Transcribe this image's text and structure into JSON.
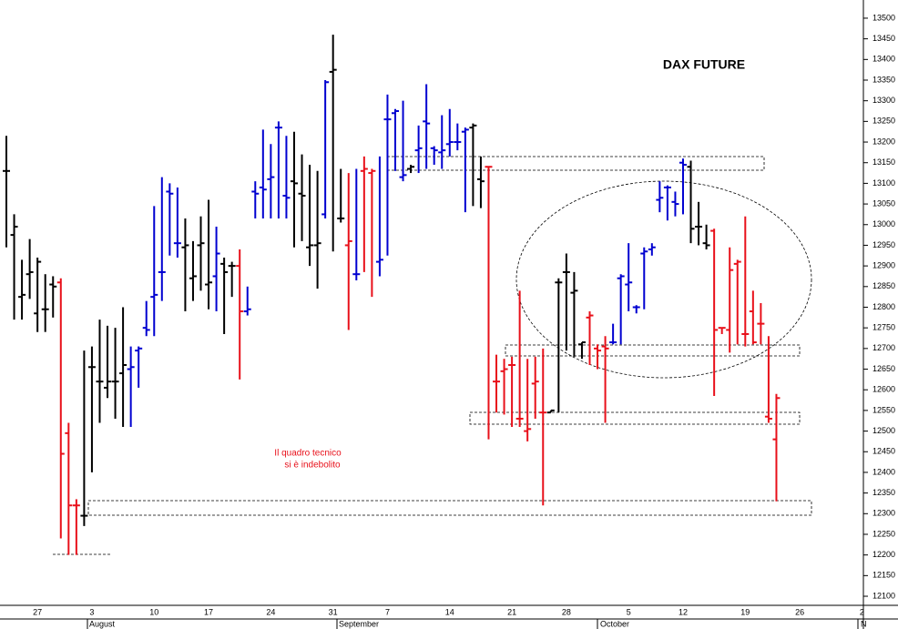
{
  "chart_data": {
    "type": "ohlc",
    "title": "DAX FUTURE",
    "annotations": [
      "Il quadro tecnico",
      "si è indebolito"
    ],
    "months": [
      "August",
      "September",
      "October",
      "N"
    ],
    "categories": [
      null,
      null,
      null,
      null,
      "27",
      null,
      null,
      null,
      null,
      null,
      null,
      "3",
      null,
      null,
      null,
      null,
      null,
      null,
      null,
      "10",
      null,
      null,
      null,
      null,
      null,
      null,
      "17",
      null,
      null,
      null,
      null,
      null,
      null,
      null,
      "24",
      null,
      null,
      null,
      null,
      null,
      null,
      null,
      "31",
      null,
      null,
      null,
      null,
      null,
      null,
      "7",
      null,
      null,
      null,
      null,
      null,
      null,
      null,
      "14",
      null,
      null,
      null,
      null,
      null,
      null,
      null,
      "21",
      null,
      null,
      null,
      null,
      null,
      null,
      "28",
      null,
      null,
      null,
      null,
      null,
      null,
      null,
      "5",
      null,
      null,
      null,
      null,
      null,
      null,
      "12",
      null,
      null,
      null,
      null,
      null,
      null,
      null,
      "19",
      null,
      null,
      null,
      null,
      null,
      null,
      "26",
      null,
      null,
      null,
      null,
      null,
      null,
      null,
      "2"
    ],
    "open": [
      13130,
      12975,
      12825,
      12880,
      12785,
      12795,
      12855,
      12860,
      12495,
      12320,
      12295,
      12655,
      12620,
      12605,
      12620,
      12640,
      12650,
      12695,
      12750,
      12825,
      12885,
      13080,
      12955,
      12945,
      12870,
      12950,
      12855,
      12875,
      12905,
      12900,
      12900,
      12790,
      13080,
      13090,
      13110,
      13235,
      13070,
      13105,
      13075,
      12945,
      12950,
      13025,
      13370,
      13015,
      12950,
      12880,
      13130,
      13125,
      12910,
      13255,
      13270,
      13115,
      13135,
      13180,
      13250,
      13185,
      13175,
      13195,
      13200,
      13225,
      13235,
      13110,
      13140,
      12620,
      12645,
      12660,
      12530,
      12500,
      12615,
      12545,
      12545,
      12860,
      12885,
      12835,
      12710,
      12775,
      12700,
      12705,
      12715,
      12870,
      12855,
      12800,
      12930,
      12940,
      13060,
      13090,
      13055,
      13150,
      13140,
      12995,
      12955,
      12985,
      12750,
      12745,
      12905,
      12735,
      12790,
      12760,
      12535,
      12480,
      null,
      null,
      null,
      null,
      null,
      null,
      null,
      null,
      null,
      null,
      null
    ],
    "high": [
      13215,
      13025,
      12915,
      12965,
      12920,
      12880,
      12875,
      12870,
      12520,
      12335,
      12695,
      12705,
      12770,
      12755,
      12750,
      12800,
      12705,
      12705,
      12815,
      13045,
      13115,
      13100,
      13090,
      13015,
      12960,
      13020,
      13060,
      12995,
      12920,
      12910,
      12940,
      12850,
      13105,
      13230,
      13195,
      13250,
      13215,
      13225,
      13170,
      13145,
      13130,
      13350,
      13460,
      13135,
      13125,
      13135,
      13165,
      13135,
      13165,
      13315,
      13280,
      13300,
      13145,
      13240,
      13340,
      13190,
      13265,
      13280,
      13245,
      13235,
      13245,
      13165,
      13140,
      12685,
      12675,
      12680,
      12840,
      12675,
      12680,
      12700,
      12550,
      12870,
      12930,
      12885,
      12715,
      12790,
      12710,
      12730,
      12760,
      12880,
      12955,
      12805,
      12945,
      12955,
      13105,
      13095,
      13080,
      13160,
      13155,
      13055,
      13000,
      12990,
      12750,
      12945,
      12915,
      13020,
      12840,
      12810,
      12730,
      12590,
      null,
      null,
      null,
      null,
      null,
      null,
      null,
      null,
      null,
      null,
      null
    ],
    "low": [
      12945,
      12770,
      12770,
      12820,
      12740,
      12740,
      12775,
      12240,
      12200,
      12200,
      12270,
      12400,
      12520,
      12580,
      12530,
      12510,
      12510,
      12605,
      12730,
      12730,
      12815,
      12925,
      12920,
      12790,
      12815,
      12840,
      12795,
      12790,
      12735,
      12825,
      12625,
      12780,
      13015,
      13015,
      13015,
      13015,
      13015,
      12945,
      12960,
      12900,
      12845,
      13015,
      12935,
      13005,
      12745,
      12865,
      12885,
      12825,
      12875,
      12925,
      13130,
      13105,
      13125,
      13125,
      13135,
      13145,
      13135,
      13165,
      13180,
      13030,
      13045,
      13040,
      12480,
      12545,
      12540,
      12510,
      12510,
      12475,
      12530,
      12320,
      12545,
      12545,
      12695,
      12680,
      12675,
      12660,
      12650,
      12520,
      12710,
      12710,
      12790,
      12785,
      12795,
      12925,
      13030,
      13010,
      13020,
      13025,
      12955,
      12950,
      12940,
      12585,
      12735,
      12690,
      12710,
      12705,
      12710,
      12710,
      12520,
      12330,
      null,
      null,
      null,
      null,
      null,
      null,
      null,
      null,
      null,
      null,
      null
    ],
    "close": [
      13130,
      12995,
      12830,
      12885,
      12910,
      12795,
      12850,
      12445,
      12320,
      12320,
      12295,
      12655,
      12620,
      12620,
      12620,
      12660,
      12655,
      12700,
      12745,
      12830,
      12885,
      13075,
      12955,
      12950,
      12875,
      12955,
      12860,
      12930,
      12885,
      12900,
      12790,
      12795,
      13075,
      13085,
      13115,
      13235,
      13065,
      13100,
      13070,
      12950,
      12955,
      13345,
      13375,
      13015,
      12960,
      12880,
      13135,
      13130,
      12915,
      13255,
      13275,
      13120,
      13140,
      13185,
      13245,
      13180,
      13180,
      13200,
      13200,
      13230,
      13240,
      13105,
      13140,
      12620,
      12650,
      12660,
      12530,
      12505,
      12620,
      12545,
      12550,
      12860,
      12885,
      12840,
      12715,
      12780,
      12695,
      12700,
      12715,
      12875,
      12860,
      12800,
      12935,
      12945,
      13065,
      13090,
      13050,
      13145,
      12990,
      12995,
      12950,
      12745,
      12750,
      12890,
      12910,
      12735,
      12715,
      12760,
      12530,
      12580,
      null,
      null,
      null,
      null,
      null,
      null,
      null,
      null,
      null,
      null,
      null
    ],
    "colors": [
      "#000000",
      "#000000",
      "#000000",
      "#000000",
      "#000000",
      "#000000",
      "#000000",
      "#e8101a",
      "#e8101a",
      "#e8101a",
      "#000000",
      "#000000",
      "#000000",
      "#000000",
      "#000000",
      "#000000",
      "#0000d0",
      "#0000d0",
      "#0000d0",
      "#0000d0",
      "#0000d0",
      "#0000d0",
      "#0000d0",
      "#000000",
      "#000000",
      "#000000",
      "#000000",
      "#0000d0",
      "#000000",
      "#000000",
      "#e8101a",
      "#0000d0",
      "#0000d0",
      "#0000d0",
      "#0000d0",
      "#0000d0",
      "#0000d0",
      "#000000",
      "#000000",
      "#000000",
      "#000000",
      "#0000d0",
      "#000000",
      "#000000",
      "#e8101a",
      "#0000d0",
      "#e8101a",
      "#e8101a",
      "#0000d0",
      "#0000d0",
      "#0000d0",
      "#0000d0",
      "#000000",
      "#0000d0",
      "#0000d0",
      "#0000d0",
      "#0000d0",
      "#0000d0",
      "#0000d0",
      "#0000d0",
      "#000000",
      "#000000",
      "#e8101a",
      "#e8101a",
      "#e8101a",
      "#e8101a",
      "#e8101a",
      "#e8101a",
      "#e8101a",
      "#e8101a",
      "#000000",
      "#000000",
      "#000000",
      "#000000",
      "#000000",
      "#e8101a",
      "#e8101a",
      "#e8101a",
      "#0000d0",
      "#0000d0",
      "#0000d0",
      "#0000d0",
      "#0000d0",
      "#0000d0",
      "#0000d0",
      "#0000d0",
      "#0000d0",
      "#0000d0",
      "#000000",
      "#000000",
      "#000000",
      "#e8101a",
      "#e8101a",
      "#e8101a",
      "#e8101a",
      "#e8101a",
      "#e8101a",
      "#e8101a",
      "#e8101a",
      "#e8101a",
      null,
      null,
      null,
      null,
      null,
      null,
      null,
      null,
      null,
      null,
      null
    ],
    "ylim": [
      12078,
      13544
    ],
    "yticks": [
      12100,
      12150,
      12200,
      12250,
      12300,
      12350,
      12400,
      12450,
      12500,
      12550,
      12600,
      12650,
      12700,
      12750,
      12800,
      12850,
      12900,
      12950,
      13000,
      13050,
      13100,
      13150,
      13200,
      13250,
      13300,
      13350,
      13400,
      13450,
      13500
    ]
  }
}
